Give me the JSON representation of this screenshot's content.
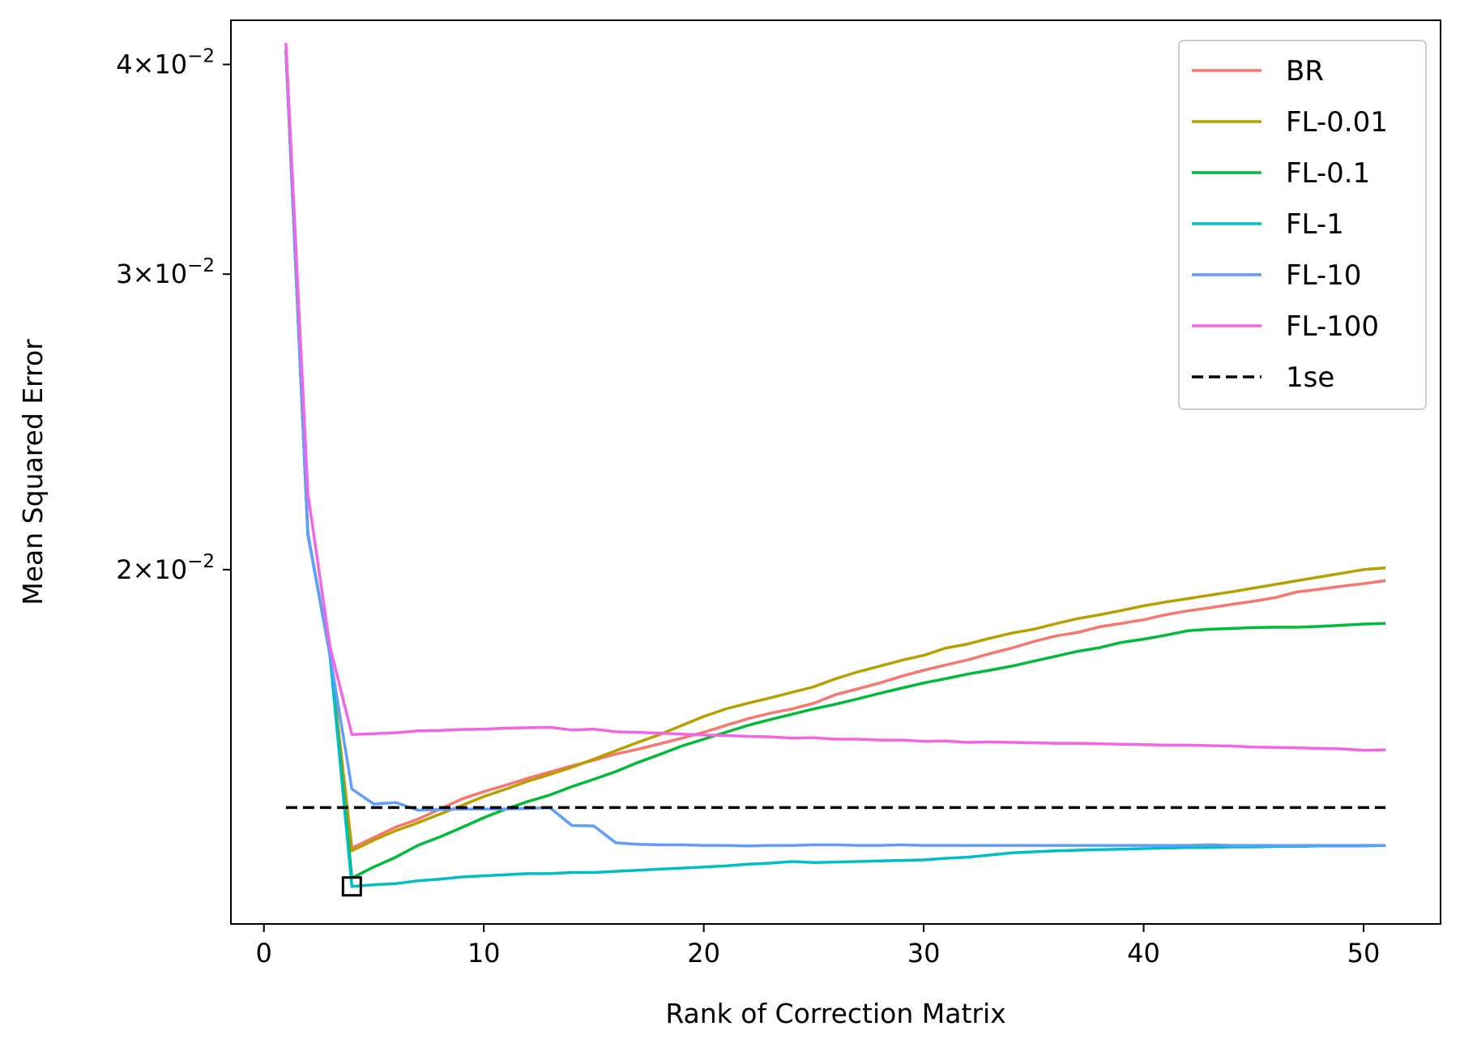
{
  "chart_data": {
    "type": "line",
    "xlabel": "Rank of Correction Matrix",
    "ylabel": "Mean Squared Error",
    "yscale": "log",
    "xlim": [
      -1.5,
      53.5
    ],
    "ylim": [
      0.0123,
      0.0425
    ],
    "xticks": [
      0,
      10,
      20,
      30,
      40,
      50
    ],
    "xtick_labels": [
      "0",
      "10",
      "20",
      "30",
      "40",
      "50"
    ],
    "yticks": [
      0.02,
      0.03,
      0.04
    ],
    "ytick_labels": [
      {
        "coef": "2",
        "times": "×",
        "base": "10",
        "exp": "−2"
      },
      {
        "coef": "3",
        "times": "×",
        "base": "10",
        "exp": "−2"
      },
      {
        "coef": "4",
        "times": "×",
        "base": "10",
        "exp": "−2"
      }
    ],
    "legend_position": "upper right",
    "x": [
      1,
      2,
      3,
      4,
      5,
      6,
      7,
      8,
      9,
      10,
      11,
      12,
      13,
      14,
      15,
      16,
      17,
      18,
      19,
      20,
      21,
      22,
      23,
      24,
      25,
      26,
      27,
      28,
      29,
      30,
      31,
      32,
      33,
      34,
      35,
      36,
      37,
      38,
      39,
      40,
      41,
      42,
      43,
      44,
      45,
      46,
      47,
      48,
      49,
      50,
      51
    ],
    "series": [
      {
        "name": "BR",
        "color": "#f8766d",
        "dash": false,
        "values": [
          0.0408,
          0.021,
          0.0178,
          0.01365,
          0.01385,
          0.01405,
          0.0142,
          0.0144,
          0.0146,
          0.01475,
          0.01488,
          0.01502,
          0.01515,
          0.01528,
          0.0154,
          0.01553,
          0.01563,
          0.01575,
          0.01587,
          0.016,
          0.01615,
          0.0163,
          0.01642,
          0.01652,
          0.01665,
          0.01685,
          0.01698,
          0.01712,
          0.01728,
          0.01742,
          0.01755,
          0.01767,
          0.01782,
          0.01796,
          0.01812,
          0.01826,
          0.01835,
          0.01849,
          0.01858,
          0.01867,
          0.0188,
          0.0189,
          0.01898,
          0.01907,
          0.01915,
          0.01925,
          0.0194,
          0.01947,
          0.01955,
          0.01962,
          0.0197
        ]
      },
      {
        "name": "FL-0.01",
        "color": "#b79f00",
        "dash": false,
        "values": [
          0.0408,
          0.021,
          0.0178,
          0.0136,
          0.0138,
          0.01398,
          0.01413,
          0.0143,
          0.01447,
          0.01465,
          0.0148,
          0.01496,
          0.0151,
          0.01525,
          0.01542,
          0.0156,
          0.01578,
          0.01595,
          0.01615,
          0.01635,
          0.01652,
          0.01665,
          0.01677,
          0.0169,
          0.01703,
          0.01722,
          0.01738,
          0.01752,
          0.01766,
          0.01778,
          0.01796,
          0.01806,
          0.0182,
          0.01833,
          0.01843,
          0.01857,
          0.0187,
          0.0188,
          0.01891,
          0.01903,
          0.01913,
          0.01922,
          0.01931,
          0.0194,
          0.0195,
          0.0196,
          0.0197,
          0.0198,
          0.0199,
          0.02,
          0.02005
        ]
      },
      {
        "name": "FL-0.1",
        "color": "#00ba38",
        "dash": false,
        "values": [
          0.0408,
          0.021,
          0.0178,
          0.0131,
          0.0133,
          0.01348,
          0.0137,
          0.01386,
          0.01404,
          0.01423,
          0.0144,
          0.01455,
          0.01468,
          0.01485,
          0.015,
          0.01516,
          0.01535,
          0.01552,
          0.0157,
          0.01585,
          0.016,
          0.01615,
          0.01628,
          0.0164,
          0.01652,
          0.01663,
          0.01675,
          0.01688,
          0.017,
          0.01712,
          0.01722,
          0.01733,
          0.01742,
          0.01752,
          0.01764,
          0.01776,
          0.01788,
          0.01797,
          0.0181,
          0.01818,
          0.01828,
          0.01839,
          0.01843,
          0.01845,
          0.01847,
          0.01848,
          0.01848,
          0.0185,
          0.01853,
          0.01856,
          0.01858
        ]
      },
      {
        "name": "FL-1",
        "color": "#00bfc4",
        "dash": false,
        "values": [
          0.0408,
          0.021,
          0.0178,
          0.01295,
          0.01298,
          0.013,
          0.01305,
          0.01308,
          0.01312,
          0.01314,
          0.01316,
          0.01318,
          0.01318,
          0.0132,
          0.0132,
          0.01322,
          0.01324,
          0.01326,
          0.01328,
          0.0133,
          0.01332,
          0.01335,
          0.01337,
          0.0134,
          0.01338,
          0.01339,
          0.0134,
          0.01341,
          0.01342,
          0.01343,
          0.01346,
          0.01348,
          0.01352,
          0.01356,
          0.01358,
          0.0136,
          0.01361,
          0.01362,
          0.01363,
          0.01364,
          0.01365,
          0.01366,
          0.01366,
          0.01367,
          0.01367,
          0.01368,
          0.01368,
          0.01369,
          0.01369,
          0.01369,
          0.0137
        ]
      },
      {
        "name": "FL-10",
        "color": "#619cff",
        "dash": false,
        "values": [
          0.0408,
          0.021,
          0.0178,
          0.0148,
          0.0145,
          0.01453,
          0.01438,
          0.01439,
          0.0144,
          0.0144,
          0.0144,
          0.01441,
          0.01443,
          0.01408,
          0.01407,
          0.01375,
          0.01372,
          0.01371,
          0.01371,
          0.0137,
          0.0137,
          0.01369,
          0.0137,
          0.0137,
          0.01371,
          0.01371,
          0.0137,
          0.0137,
          0.01371,
          0.0137,
          0.0137,
          0.0137,
          0.0137,
          0.0137,
          0.0137,
          0.0137,
          0.0137,
          0.0137,
          0.0137,
          0.0137,
          0.0137,
          0.0137,
          0.01371,
          0.0137,
          0.0137,
          0.0137,
          0.0137,
          0.0137,
          0.0137,
          0.0137,
          0.0137
        ]
      },
      {
        "name": "FL-100",
        "color": "#f564e3",
        "dash": false,
        "values": [
          0.0412,
          0.0222,
          0.018,
          0.01595,
          0.01597,
          0.01599,
          0.01603,
          0.01604,
          0.01606,
          0.01607,
          0.01609,
          0.0161,
          0.01611,
          0.01605,
          0.01607,
          0.01601,
          0.016,
          0.01598,
          0.01596,
          0.01594,
          0.01593,
          0.01591,
          0.0159,
          0.01587,
          0.01588,
          0.01585,
          0.01585,
          0.01583,
          0.01583,
          0.0158,
          0.01581,
          0.01578,
          0.01579,
          0.01578,
          0.01577,
          0.01576,
          0.01576,
          0.01575,
          0.01574,
          0.01573,
          0.01572,
          0.01572,
          0.01571,
          0.0157,
          0.01568,
          0.01567,
          0.01566,
          0.01565,
          0.01564,
          0.01561,
          0.01562
        ]
      },
      {
        "name": "1se",
        "color": "#000000",
        "dash": true,
        "x": [
          1,
          51
        ],
        "values": [
          0.01443,
          0.01443
        ]
      }
    ],
    "marker": {
      "shape": "square",
      "x": 4,
      "y": 0.01295,
      "color": "#000000"
    }
  }
}
